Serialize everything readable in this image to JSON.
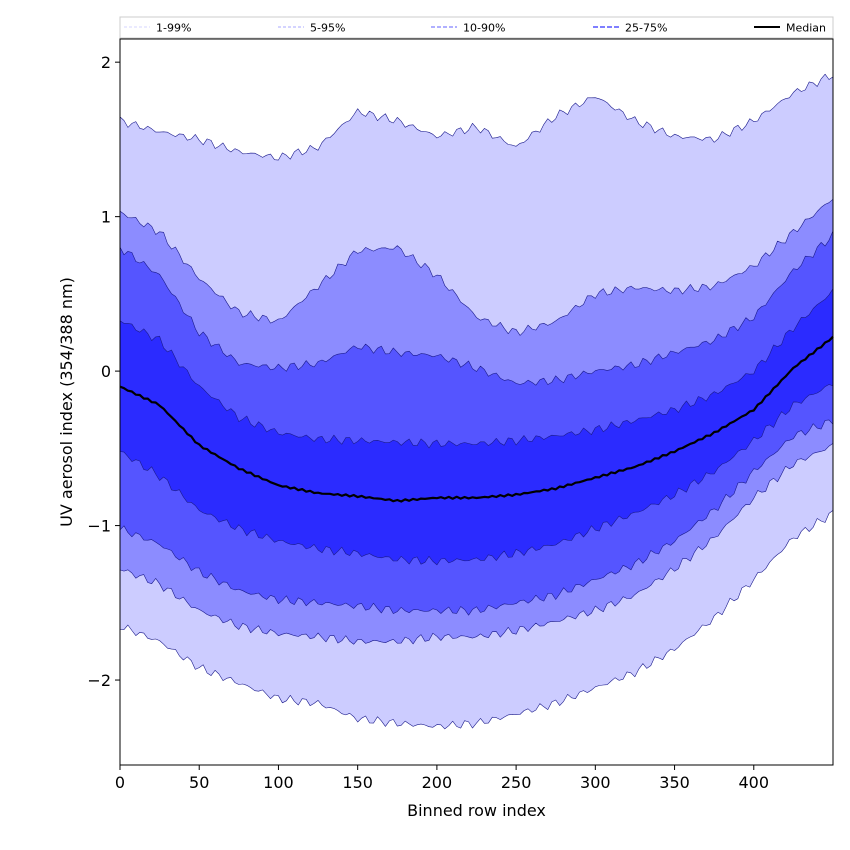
{
  "chart_data": {
    "type": "area",
    "xlabel": "Binned row index",
    "ylabel": "UV aerosol index (354/388 nm)",
    "xlim": [
      0,
      450
    ],
    "ylim": [
      -2.55,
      2.15
    ],
    "x_ticks": [
      0,
      50,
      100,
      150,
      200,
      250,
      300,
      350,
      400
    ],
    "x_tick_labels": [
      "0",
      "50",
      "100",
      "150",
      "200",
      "250",
      "300",
      "350",
      "400"
    ],
    "y_ticks": [
      -2,
      -1,
      0,
      1,
      2
    ],
    "y_tick_labels": [
      "−2",
      "−1",
      "0",
      "1",
      "2"
    ],
    "legend_position": "top",
    "colors": {
      "band_1_99": "#ccccff",
      "band_5_95": "#8c8cff",
      "band_10_90": "#5555ff",
      "band_25_75": "#2b2bff",
      "median": "#000000"
    },
    "x": [
      0,
      25,
      50,
      75,
      100,
      125,
      150,
      175,
      200,
      225,
      250,
      275,
      300,
      325,
      350,
      375,
      400,
      425,
      450
    ],
    "series": [
      {
        "name": "1-99%",
        "kind": "band",
        "lower": [
          -1.65,
          -1.75,
          -1.92,
          -2.02,
          -2.12,
          -2.15,
          -2.25,
          -2.28,
          -2.3,
          -2.28,
          -2.22,
          -2.15,
          -2.05,
          -1.95,
          -1.8,
          -1.6,
          -1.35,
          -1.08,
          -0.92
        ],
        "upper": [
          1.62,
          1.55,
          1.5,
          1.42,
          1.38,
          1.45,
          1.68,
          1.62,
          1.52,
          1.58,
          1.45,
          1.65,
          1.78,
          1.62,
          1.52,
          1.5,
          1.62,
          1.8,
          1.92
        ]
      },
      {
        "name": "5-95%",
        "kind": "band",
        "lower": [
          -1.28,
          -1.38,
          -1.55,
          -1.65,
          -1.7,
          -1.72,
          -1.75,
          -1.75,
          -1.72,
          -1.72,
          -1.68,
          -1.62,
          -1.55,
          -1.45,
          -1.28,
          -1.08,
          -0.82,
          -0.6,
          -0.48
        ],
        "upper": [
          1.03,
          0.9,
          0.6,
          0.38,
          0.32,
          0.55,
          0.78,
          0.8,
          0.62,
          0.35,
          0.25,
          0.32,
          0.5,
          0.54,
          0.52,
          0.55,
          0.68,
          0.9,
          1.12
        ]
      },
      {
        "name": "10-90%",
        "kind": "band",
        "lower": [
          -1.02,
          -1.12,
          -1.3,
          -1.42,
          -1.48,
          -1.5,
          -1.52,
          -1.55,
          -1.55,
          -1.55,
          -1.5,
          -1.45,
          -1.35,
          -1.25,
          -1.1,
          -0.9,
          -0.65,
          -0.42,
          -0.32
        ],
        "upper": [
          0.8,
          0.62,
          0.25,
          0.05,
          0.02,
          0.05,
          0.16,
          0.12,
          0.1,
          0.02,
          -0.08,
          -0.06,
          0.0,
          0.04,
          0.12,
          0.2,
          0.35,
          0.65,
          0.88
        ]
      },
      {
        "name": "25-75%",
        "kind": "band",
        "lower": [
          -0.52,
          -0.68,
          -0.9,
          -1.02,
          -1.1,
          -1.15,
          -1.18,
          -1.22,
          -1.23,
          -1.22,
          -1.18,
          -1.12,
          -1.02,
          -0.92,
          -0.8,
          -0.65,
          -0.45,
          -0.22,
          -0.08
        ],
        "upper": [
          0.33,
          0.2,
          -0.1,
          -0.3,
          -0.4,
          -0.44,
          -0.45,
          -0.46,
          -0.47,
          -0.47,
          -0.45,
          -0.42,
          -0.38,
          -0.32,
          -0.25,
          -0.15,
          0.0,
          0.28,
          0.52
        ]
      },
      {
        "name": "Median",
        "kind": "line",
        "values": [
          -0.1,
          -0.22,
          -0.48,
          -0.63,
          -0.74,
          -0.79,
          -0.81,
          -0.84,
          -0.82,
          -0.82,
          -0.8,
          -0.76,
          -0.69,
          -0.62,
          -0.52,
          -0.4,
          -0.25,
          0.02,
          0.22
        ]
      }
    ]
  }
}
